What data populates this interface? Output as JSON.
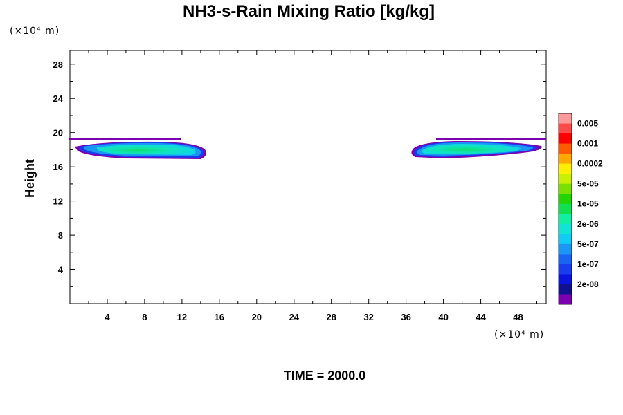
{
  "chart_data": {
    "type": "heatmap",
    "title": "NH3-s-Rain Mixing Ratio [kg/kg]",
    "ylabel": "Height",
    "x_unit": "(×10⁴ m)",
    "y_unit": "(×10⁴ m)",
    "footer": "TIME = 2000.0",
    "xlim": [
      0,
      51
    ],
    "ylim": [
      0,
      29.6
    ],
    "xticks": [
      "4",
      "8",
      "12",
      "16",
      "20",
      "24",
      "28",
      "32",
      "36",
      "40",
      "44",
      "48"
    ],
    "yticks": [
      "4",
      "8",
      "12",
      "16",
      "20",
      "24",
      "28"
    ],
    "colorbar": {
      "labels": [
        "0.005",
        "0.001",
        "0.0002",
        "5e-05",
        "1e-05",
        "2e-06",
        "5e-07",
        "1e-07",
        "2e-08"
      ],
      "colors_top_to_bottom": [
        "#ff9a9a",
        "#ff4a4a",
        "#ff0000",
        "#ff5a00",
        "#ffa800",
        "#ffee00",
        "#c8f000",
        "#7ae000",
        "#22d400",
        "#10e050",
        "#10f0a0",
        "#10e4d4",
        "#10ccf4",
        "#1a96f4",
        "#1a64f4",
        "#1a3cf0",
        "#0a14e0",
        "#101090",
        "#7a00b0"
      ]
    },
    "regions": [
      {
        "name": "left",
        "x_range": [
          0.3,
          14.6
        ],
        "y_range": [
          16.9,
          19.6
        ],
        "core_level": "5e-06"
      },
      {
        "name": "right",
        "x_range": [
          36.1,
          51
        ],
        "y_range": [
          16.9,
          19.6
        ],
        "core_level": "5e-06"
      }
    ]
  }
}
